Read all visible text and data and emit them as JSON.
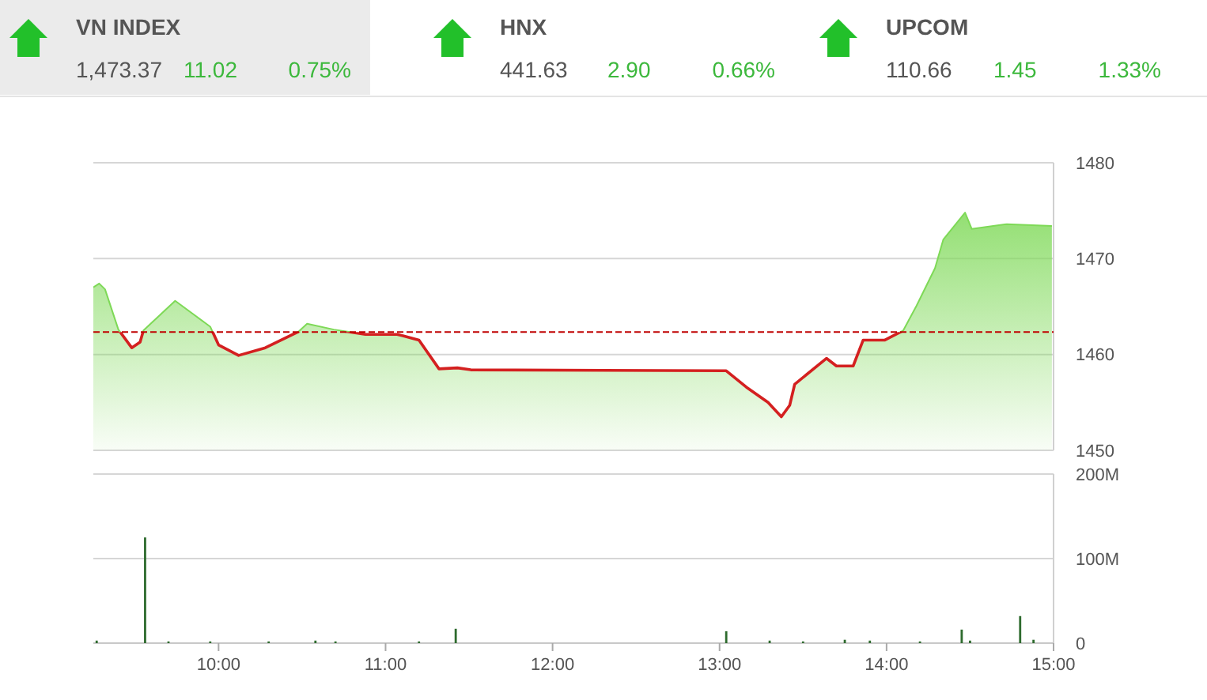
{
  "chart_data": [
    {
      "type": "other",
      "annotations": [
        "VN INDEX",
        "1,473.37",
        "11.02",
        "0.75%",
        "HNX",
        "441.63",
        "2.90",
        "0.66%",
        "UPCOM",
        "110.66",
        "1.45",
        "1.33%"
      ]
    },
    {
      "type": "area",
      "tick_labels": "y",
      "grid": "y",
      "xlim": [
        9.25,
        15
      ],
      "ylim": [
        1450,
        1480
      ],
      "yticks": [
        1450,
        1460,
        1470,
        1480
      ],
      "ref_lines": [
        {
          "axis": "y",
          "value": 1462.35,
          "color": "#c00000",
          "line_style": "dashed"
        }
      ],
      "series": [
        {
          "color": "#7ed957",
          "x": [
            9.25,
            9.285,
            9.32,
            9.4,
            9.48,
            9.53,
            9.55,
            9.74,
            9.95,
            10.0,
            10.12,
            10.28,
            10.48,
            10.53,
            10.69,
            10.88,
            11.07,
            11.2,
            11.32,
            11.43,
            11.51,
            13.04,
            13.16,
            13.29,
            13.37,
            13.42,
            13.45,
            13.64,
            13.7,
            13.8,
            13.86,
            13.99,
            14.1,
            14.18,
            14.29,
            14.34,
            14.47,
            14.51,
            14.72,
            14.99
          ],
          "values": [
            1467.0,
            1467.4,
            1466.8,
            1462.6,
            1460.7,
            1461.3,
            1462.5,
            1465.6,
            1462.9,
            1461.0,
            1459.9,
            1460.7,
            1462.4,
            1463.2,
            1462.6,
            1462.1,
            1462.1,
            1461.5,
            1458.5,
            1458.6,
            1458.4,
            1458.3,
            1456.6,
            1455.0,
            1453.5,
            1454.7,
            1456.9,
            1459.6,
            1458.8,
            1458.8,
            1461.5,
            1461.5,
            1462.5,
            1465.1,
            1469.0,
            1472.0,
            1474.8,
            1473.1,
            1473.6,
            1473.4
          ]
        }
      ]
    },
    {
      "type": "bar",
      "grid": "y",
      "xlim": [
        9.25,
        15
      ],
      "ylim": [
        0,
        200
      ],
      "yticks": [
        0,
        {
          "value": 100,
          "label": "100M"
        },
        {
          "value": 200,
          "label": "200M"
        }
      ],
      "xticks": [
        {
          "value": 10,
          "label": "10:00"
        },
        {
          "value": 11,
          "label": "11:00"
        },
        {
          "value": 12,
          "label": "12:00"
        },
        {
          "value": 13,
          "label": "13:00"
        },
        {
          "value": 14,
          "label": "14:00"
        },
        {
          "value": 15,
          "label": "15:00"
        }
      ],
      "color": "#2e6b2e",
      "x": [
        9.27,
        9.56,
        9.7,
        9.95,
        10.3,
        10.58,
        10.7,
        11.2,
        11.42,
        13.04,
        13.3,
        13.5,
        13.75,
        13.9,
        14.2,
        14.45,
        14.5,
        14.8,
        14.88
      ],
      "values": [
        3,
        125,
        2,
        2,
        2,
        3,
        2,
        2,
        17,
        14,
        3,
        2,
        4,
        3,
        2,
        16,
        3,
        32,
        4
      ]
    }
  ]
}
